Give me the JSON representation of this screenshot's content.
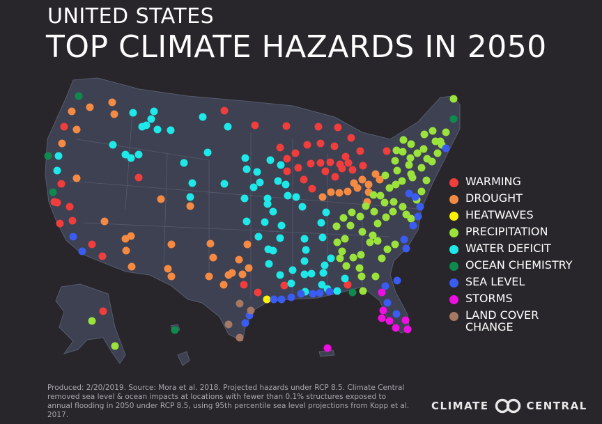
{
  "header": {
    "line1": "UNITED STATES",
    "line2": "TOP CLIMATE HAZARDS IN 2050"
  },
  "legend": [
    {
      "key": "warming",
      "label": "WARMING",
      "color": "#f23d3d"
    },
    {
      "key": "drought",
      "label": "DROUGHT",
      "color": "#f58a43"
    },
    {
      "key": "heatwaves",
      "label": "HEATWAVES",
      "color": "#fff200"
    },
    {
      "key": "precipitation",
      "label": "PRECIPITATION",
      "color": "#9be23d"
    },
    {
      "key": "water_deficit",
      "label": "WATER DEFICIT",
      "color": "#1ee8e8"
    },
    {
      "key": "ocean_chemistry",
      "label": "OCEAN CHEMISTRY",
      "color": "#0f8a4e"
    },
    {
      "key": "sea_level",
      "label": "SEA LEVEL",
      "color": "#3b5cf0"
    },
    {
      "key": "storms",
      "label": "STORMS",
      "color": "#ee10e0"
    },
    {
      "key": "land_cover",
      "label": "LAND COVER\nCHANGE",
      "color": "#a57862"
    }
  ],
  "footnote": "Produced: 2/20/2019. Source: Mora et al. 2018. Projected hazards under RCP 8.5. Climate Central removed sea level & ocean impacts at locations with fewer than 0.1% structures exposed to annual flooding in 2050 under RCP 8.5, using 95th percentile sea level projections from  Kopp et al. 2017.",
  "brand": {
    "left": "CLIMATE",
    "right": "CENTRAL"
  }
}
